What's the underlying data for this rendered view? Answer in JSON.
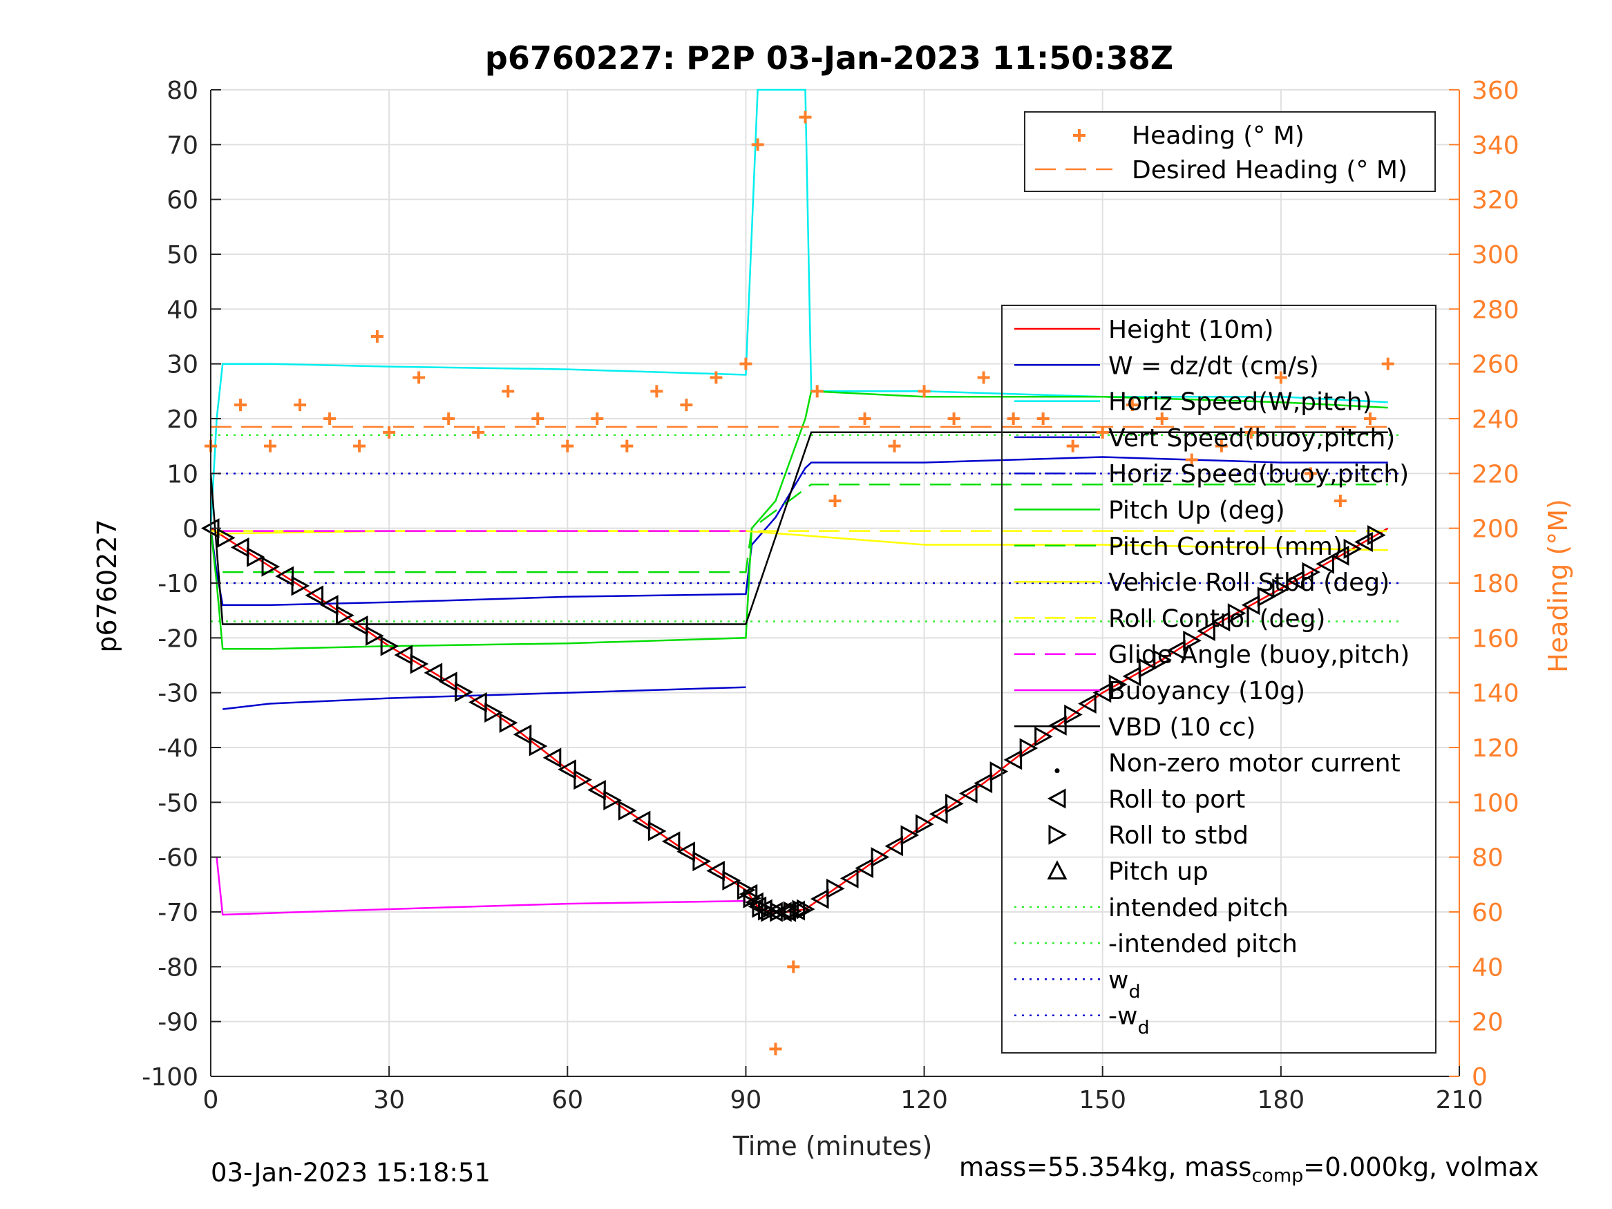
{
  "chart_data": {
    "type": "line",
    "title": "p6760227: P2P 03-Jan-2023 11:50:38Z",
    "xlabel": "Time (minutes)",
    "ylabel_left": "p6760227",
    "ylabel_right": "Heading (°M)",
    "xlim": [
      0,
      210
    ],
    "ylim_left": [
      -100,
      80
    ],
    "ylim_right": [
      0,
      360
    ],
    "x_ticks": [
      "0",
      "30",
      "60",
      "90",
      "120",
      "150",
      "180",
      "210"
    ],
    "y_ticks_left": [
      "80",
      "70",
      "60",
      "50",
      "40",
      "30",
      "20",
      "10",
      "0",
      "-10",
      "-20",
      "-30",
      "-40",
      "-50",
      "-60",
      "-70",
      "-80",
      "-90",
      "-100"
    ],
    "y_ticks_right": [
      "360",
      "340",
      "320",
      "300",
      "280",
      "260",
      "240",
      "220",
      "200",
      "180",
      "160",
      "140",
      "120",
      "100",
      "80",
      "60",
      "40",
      "20",
      "0"
    ],
    "grid": true,
    "colors": {
      "height": "#ff0000",
      "w": "#0000cc",
      "horiz_speed_w": "#00eeee",
      "vert_speed_buoy": "#0000cc",
      "pitch_up": "#00dd00",
      "pitch_control": "#00dd00",
      "roll_stbd": "#ffff00",
      "roll_control": "#ffff00",
      "glide_angle": "#ff00ff",
      "buoyancy": "#ff00ff",
      "vbd": "#000000",
      "heading": "#ff7f2a",
      "intended_pitch": "#33ee33",
      "wd": "#0000cc"
    },
    "series": [
      {
        "name": "Height (10m)",
        "x": [
          0,
          10,
          20,
          30,
          40,
          50,
          60,
          70,
          80,
          90,
          92,
          94,
          97,
          100,
          110,
          120,
          130,
          140,
          150,
          160,
          170,
          180,
          190,
          198
        ],
        "y": [
          0,
          -7,
          -14,
          -21.5,
          -28,
          -35.5,
          -44,
          -51.5,
          -59,
          -66,
          -69,
          -70,
          -70,
          -69.5,
          -62,
          -54,
          -46.5,
          -38,
          -30,
          -24,
          -17,
          -11,
          -5,
          0
        ]
      },
      {
        "name": "W = dz/dt (cm/s)",
        "x": [
          0,
          1,
          2,
          10,
          30,
          60,
          90,
          91,
          95,
          100,
          101,
          120,
          150,
          180,
          198
        ],
        "y": [
          0,
          -8,
          -14,
          -14,
          -13.5,
          -12.5,
          -12,
          -3,
          2,
          11,
          12,
          12,
          13,
          12,
          12
        ]
      },
      {
        "name": "Horiz Speed(W,pitch)",
        "x": [
          0,
          1,
          2,
          10,
          30,
          60,
          90,
          92,
          94,
          100,
          101,
          120,
          150,
          180,
          198
        ],
        "y": [
          0,
          20,
          30,
          30,
          29.5,
          29,
          28,
          80,
          80,
          80,
          25,
          25,
          24,
          24,
          23
        ]
      },
      {
        "name": "Vert Speed(buoy,pitch)",
        "x": [
          2,
          10,
          30,
          60,
          90
        ],
        "y": [
          -33,
          -32,
          -31,
          -30,
          -29
        ]
      },
      {
        "name": "Pitch Up (deg)",
        "x": [
          0,
          1,
          2,
          10,
          30,
          60,
          90,
          91,
          95,
          100,
          101,
          120,
          150,
          180,
          198
        ],
        "y": [
          0,
          -10,
          -22,
          -22,
          -21.5,
          -21,
          -20,
          0,
          5,
          20,
          25,
          24,
          24,
          23,
          22
        ]
      },
      {
        "name": "Pitch Control (mm)",
        "x": [
          2,
          90,
          91,
          101,
          198
        ],
        "y": [
          -8,
          -8,
          0,
          8,
          8
        ]
      },
      {
        "name": "Vehicle Roll Stbd (deg)",
        "x": [
          0,
          30,
          60,
          90,
          120,
          150,
          198
        ],
        "y": [
          -1,
          -0.5,
          -0.5,
          -0.5,
          -3,
          -3,
          -4
        ]
      },
      {
        "name": "Roll Control (deg)",
        "x": [
          0,
          198
        ],
        "y": [
          -0.5,
          -0.5
        ]
      },
      {
        "name": "Glide Angle (buoy,pitch)",
        "x": [
          2,
          90
        ],
        "y": [
          -0.5,
          -0.5
        ]
      },
      {
        "name": "Buoyancy (10g)",
        "x": [
          1,
          2,
          30,
          60,
          90
        ],
        "y": [
          -60,
          -70.5,
          -69.5,
          -68.5,
          -68
        ]
      },
      {
        "name": "VBD (10 cc)",
        "x": [
          0,
          2,
          90,
          101,
          198
        ],
        "y": [
          10,
          -17.5,
          -17.5,
          17.5,
          17.5
        ]
      },
      {
        "name": "Heading (° M)",
        "axis": "right",
        "x": [
          0,
          5,
          10,
          15,
          20,
          25,
          28,
          30,
          35,
          40,
          45,
          50,
          55,
          60,
          65,
          70,
          75,
          80,
          85,
          90,
          92,
          95,
          98,
          100,
          102,
          105,
          110,
          115,
          120,
          125,
          130,
          135,
          140,
          145,
          150,
          155,
          160,
          165,
          170,
          175,
          180,
          185,
          190,
          195,
          198
        ],
        "y": [
          230,
          245,
          230,
          245,
          240,
          230,
          270,
          235,
          255,
          240,
          235,
          250,
          240,
          230,
          240,
          230,
          250,
          245,
          255,
          260,
          340,
          10,
          40,
          350,
          250,
          210,
          240,
          230,
          250,
          240,
          255,
          240,
          240,
          230,
          235,
          245,
          240,
          225,
          230,
          235,
          255,
          220,
          210,
          240,
          260
        ]
      },
      {
        "name": "Desired Heading (° M)",
        "axis": "right",
        "x": [
          0,
          198
        ],
        "y": [
          237,
          237
        ]
      }
    ],
    "reference_lines": [
      {
        "name": "intended pitch",
        "y": 17
      },
      {
        "name": "-intended pitch",
        "y": -17
      },
      {
        "name": "w_d",
        "y": 10
      },
      {
        "name": "-w_d",
        "y": -10
      }
    ],
    "legend_heading": {
      "placement": "top-right",
      "entries": [
        "Heading (° M)",
        "Desired Heading (° M)"
      ]
    },
    "legend_main": {
      "placement": "center-right",
      "entries": [
        "Height (10m)",
        "W = dz/dt (cm/s)",
        "Horiz Speed(W,pitch)",
        "Vert Speed(buoy,pitch)",
        "Horiz Speed(buoy,pitch)",
        "Pitch Up (deg)",
        "Pitch Control (mm)",
        "Vehicle Roll Stbd (deg)",
        "Roll Control (deg)",
        "Glide Angle (buoy,pitch)",
        "Buoyancy (10g)",
        "VBD (10 cc)",
        "Non-zero motor current",
        "Roll to port",
        "Roll to stbd",
        "Pitch up",
        "intended pitch",
        "-intended pitch",
        "w",
        "-w"
      ]
    },
    "legend_wd_sub": "d"
  },
  "footer": {
    "timestamp": "03-Jan-2023 15:18:51",
    "mass_text": "mass=55.354kg, mass",
    "mass_sub": "comp",
    "mass_tail": "=0.000kg, volmax"
  }
}
